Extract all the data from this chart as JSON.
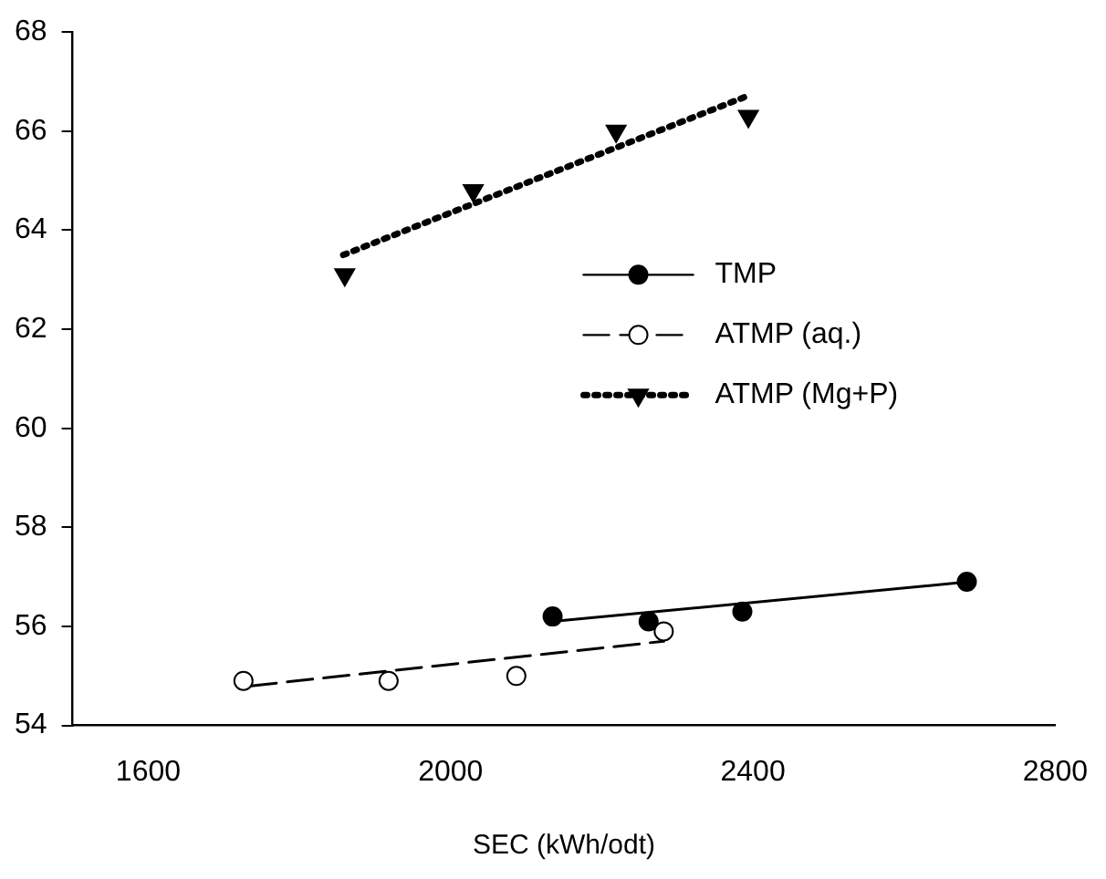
{
  "chart_data": {
    "type": "scatter",
    "xlabel": "SEC (kWh/odt)",
    "xlim": [
      1500,
      2800
    ],
    "xticks": [
      1600,
      2000,
      2400,
      2800
    ],
    "ylim": [
      54,
      68
    ],
    "yticks": [
      54,
      56,
      58,
      60,
      62,
      64,
      66,
      68
    ],
    "grid": false,
    "legend": "right",
    "series": [
      {
        "name": "TMP",
        "type": "scatter",
        "color": "#000000",
        "marker": "circle",
        "line_style": "solid",
        "x": [
          2135,
          2262,
          2386,
          2683
        ],
        "values": [
          56.2,
          56.1,
          56.3,
          56.9
        ]
      },
      {
        "name": "ATMP (aq.)",
        "type": "scatter",
        "color": "#000000",
        "marker": "circle",
        "line_style": "dashed",
        "x": [
          1726,
          1918,
          2087,
          2282
        ],
        "values": [
          54.9,
          54.9,
          55.0,
          55.9
        ]
      },
      {
        "name": "ATMP (Mg+P)",
        "type": "scatter",
        "color": "#000000",
        "marker": "triangle",
        "line_style": "dotted",
        "x": [
          1860,
          2030,
          2219,
          2394
        ],
        "values": [
          63.1,
          64.8,
          66.0,
          66.3
        ]
      },
      {
        "type": "line",
        "color": "#000000",
        "line_style": "solid",
        "x": [
          2135,
          2686
        ],
        "values": [
          56.1,
          56.9
        ]
      },
      {
        "type": "line",
        "color": "#000000",
        "line_style": "dashed",
        "x": [
          1736,
          2282
        ],
        "values": [
          54.8,
          55.7
        ]
      },
      {
        "type": "line",
        "color": "#000000",
        "line_style": "dotted",
        "x": [
          1858,
          2391
        ],
        "values": [
          63.5,
          66.7
        ]
      }
    ]
  }
}
